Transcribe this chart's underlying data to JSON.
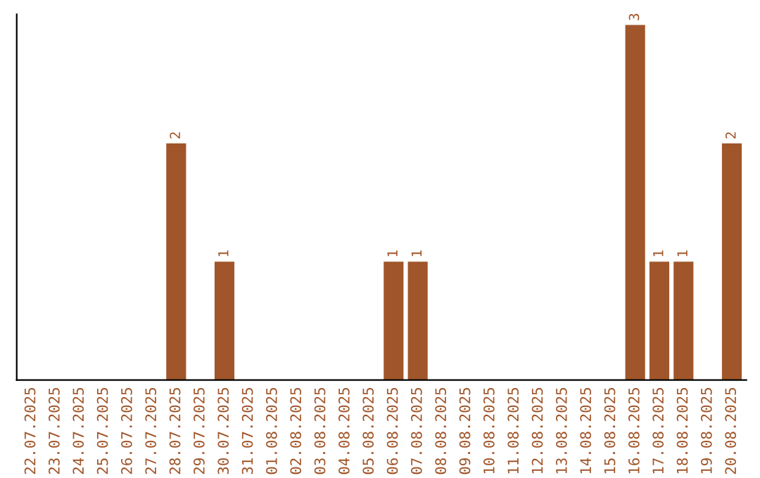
{
  "chart_data": {
    "type": "bar",
    "color": "#a0562a",
    "data_labels": true,
    "grid": false,
    "legend": false,
    "tick_labels": "x",
    "categories": [
      "22.07.2025",
      "23.07.2025",
      "24.07.2025",
      "25.07.2025",
      "26.07.2025",
      "27.07.2025",
      "28.07.2025",
      "29.07.2025",
      "30.07.2025",
      "31.07.2025",
      "01.08.2025",
      "02.08.2025",
      "03.08.2025",
      "04.08.2025",
      "05.08.2025",
      "06.08.2025",
      "07.08.2025",
      "08.08.2025",
      "09.08.2025",
      "10.08.2025",
      "11.08.2025",
      "12.08.2025",
      "13.08.2025",
      "14.08.2025",
      "15.08.2025",
      "16.08.2025",
      "17.08.2025",
      "18.08.2025",
      "19.08.2025",
      "20.08.2025"
    ],
    "values": [
      0,
      0,
      0,
      0,
      0,
      0,
      2,
      0,
      1,
      0,
      0,
      0,
      0,
      0,
      0,
      1,
      1,
      0,
      0,
      0,
      0,
      0,
      0,
      0,
      0,
      3,
      1,
      1,
      0,
      2
    ],
    "value_labels": [
      null,
      null,
      null,
      null,
      null,
      null,
      "2",
      null,
      "1",
      null,
      null,
      null,
      null,
      null,
      null,
      "1",
      "1",
      null,
      null,
      null,
      null,
      null,
      null,
      null,
      null,
      "3",
      "1",
      "1",
      null,
      "2"
    ]
  }
}
